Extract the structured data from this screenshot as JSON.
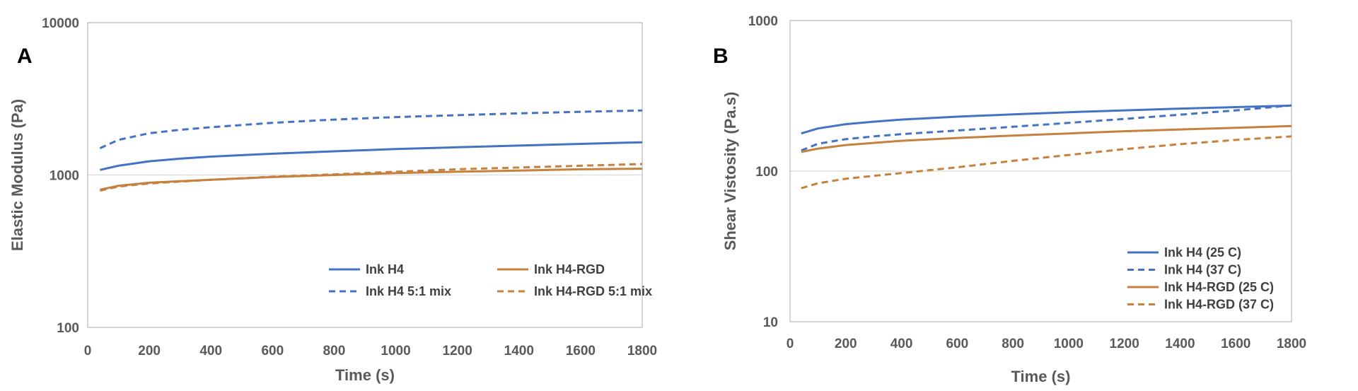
{
  "chart_data": [
    {
      "panel": "A",
      "type": "line",
      "title": "",
      "xlabel": "Time (s)",
      "ylabel": "Elastic Modulus (Pa)",
      "xlim": [
        0,
        1800
      ],
      "ylim": [
        100,
        10000
      ],
      "yscale": "log",
      "xticks": [
        "0",
        "200",
        "400",
        "600",
        "800",
        "1000",
        "1200",
        "1400",
        "1600",
        "1800"
      ],
      "yticks": [
        "100",
        "1000",
        "10000"
      ],
      "grid": true,
      "legend_position": "bottom-right",
      "legend_columns": 2,
      "series": [
        {
          "name": "Ink H4",
          "color": "#4472c4",
          "dash": "solid",
          "x": [
            40,
            100,
            200,
            300,
            400,
            600,
            800,
            1000,
            1200,
            1400,
            1600,
            1800
          ],
          "y": [
            1080,
            1150,
            1230,
            1280,
            1320,
            1380,
            1430,
            1480,
            1520,
            1560,
            1600,
            1640
          ]
        },
        {
          "name": "Ink H4 5:1 mix",
          "color": "#4472c4",
          "dash": "dashed",
          "x": [
            40,
            100,
            200,
            300,
            400,
            600,
            800,
            1000,
            1200,
            1400,
            1600,
            1800
          ],
          "y": [
            1500,
            1700,
            1880,
            1980,
            2060,
            2200,
            2310,
            2400,
            2470,
            2540,
            2600,
            2650
          ]
        },
        {
          "name": "Ink H4-RGD",
          "color": "#c5813d",
          "dash": "solid",
          "x": [
            40,
            100,
            200,
            300,
            400,
            600,
            800,
            1000,
            1200,
            1400,
            1600,
            1800
          ],
          "y": [
            800,
            850,
            890,
            910,
            930,
            970,
            1000,
            1030,
            1050,
            1070,
            1090,
            1100
          ]
        },
        {
          "name": "Ink H4-RGD 5:1 mix",
          "color": "#c5813d",
          "dash": "dashed",
          "x": [
            40,
            100,
            200,
            300,
            400,
            600,
            800,
            1000,
            1200,
            1400,
            1600,
            1800
          ],
          "y": [
            790,
            840,
            880,
            905,
            930,
            975,
            1010,
            1050,
            1090,
            1120,
            1150,
            1180
          ]
        }
      ]
    },
    {
      "panel": "B",
      "type": "line",
      "title": "",
      "xlabel": "Time (s)",
      "ylabel": "Shear Vistosity (Pa.s)",
      "xlim": [
        0,
        1800
      ],
      "ylim": [
        10,
        1000
      ],
      "yscale": "log",
      "xticks": [
        "0",
        "200",
        "400",
        "600",
        "800",
        "1000",
        "1200",
        "1400",
        "1600",
        "1800"
      ],
      "yticks": [
        "10",
        "100",
        "1000"
      ],
      "grid": true,
      "legend_position": "bottom-right",
      "legend_columns": 1,
      "series": [
        {
          "name": "Ink H4 (25 C)",
          "color": "#4472c4",
          "dash": "solid",
          "x": [
            40,
            100,
            200,
            300,
            400,
            600,
            800,
            1000,
            1200,
            1400,
            1600,
            1800
          ],
          "y": [
            178,
            192,
            205,
            213,
            220,
            230,
            238,
            246,
            253,
            260,
            266,
            272
          ]
        },
        {
          "name": "Ink H4 (37 C)",
          "color": "#4472c4",
          "dash": "dashed",
          "x": [
            40,
            100,
            200,
            300,
            400,
            600,
            800,
            1000,
            1200,
            1400,
            1600,
            1800
          ],
          "y": [
            137,
            152,
            163,
            170,
            176,
            186,
            197,
            209,
            222,
            237,
            253,
            273
          ]
        },
        {
          "name": "Ink H4-RGD (25 C)",
          "color": "#c5813d",
          "dash": "solid",
          "x": [
            40,
            100,
            200,
            300,
            400,
            600,
            800,
            1000,
            1200,
            1400,
            1600,
            1800
          ],
          "y": [
            134,
            141,
            149,
            154,
            159,
            166,
            172,
            178,
            184,
            189,
            194,
            199
          ]
        },
        {
          "name": "Ink H4-RGD (37 C)",
          "color": "#c5813d",
          "dash": "dashed",
          "x": [
            40,
            100,
            200,
            300,
            400,
            600,
            800,
            1000,
            1200,
            1400,
            1600,
            1800
          ],
          "y": [
            77,
            83,
            89,
            93,
            97,
            106,
            117,
            128,
            140,
            151,
            161,
            170
          ]
        }
      ]
    }
  ]
}
